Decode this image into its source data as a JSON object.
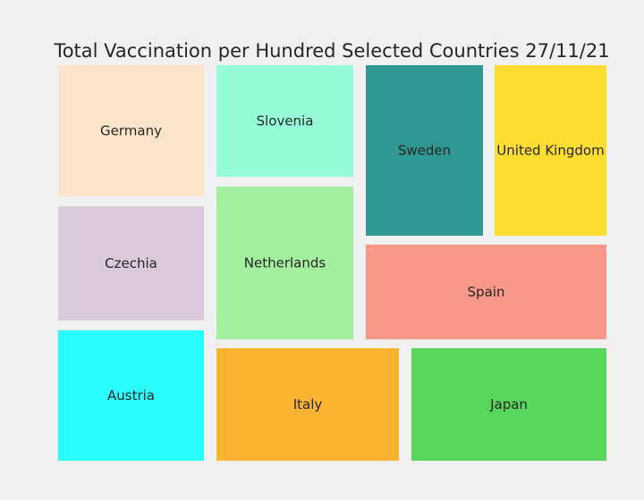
{
  "chart_data": {
    "type": "treemap",
    "title": "Total Vaccination per Hundred Selected Countries 27/11/21",
    "categories": [
      "Germany",
      "Czechia",
      "Austria",
      "Slovenia",
      "Netherlands",
      "Sweden",
      "United Kingdom",
      "Spain",
      "Italy",
      "Japan"
    ],
    "colors": [
      "#fde5cc",
      "#dbc9dc",
      "#2afdfd",
      "#96fbd7",
      "#a4ef9f",
      "#309892",
      "#fcde32",
      "#f8988a",
      "#fbb432",
      "#59d65c"
    ],
    "background": "#f0f0f0"
  }
}
